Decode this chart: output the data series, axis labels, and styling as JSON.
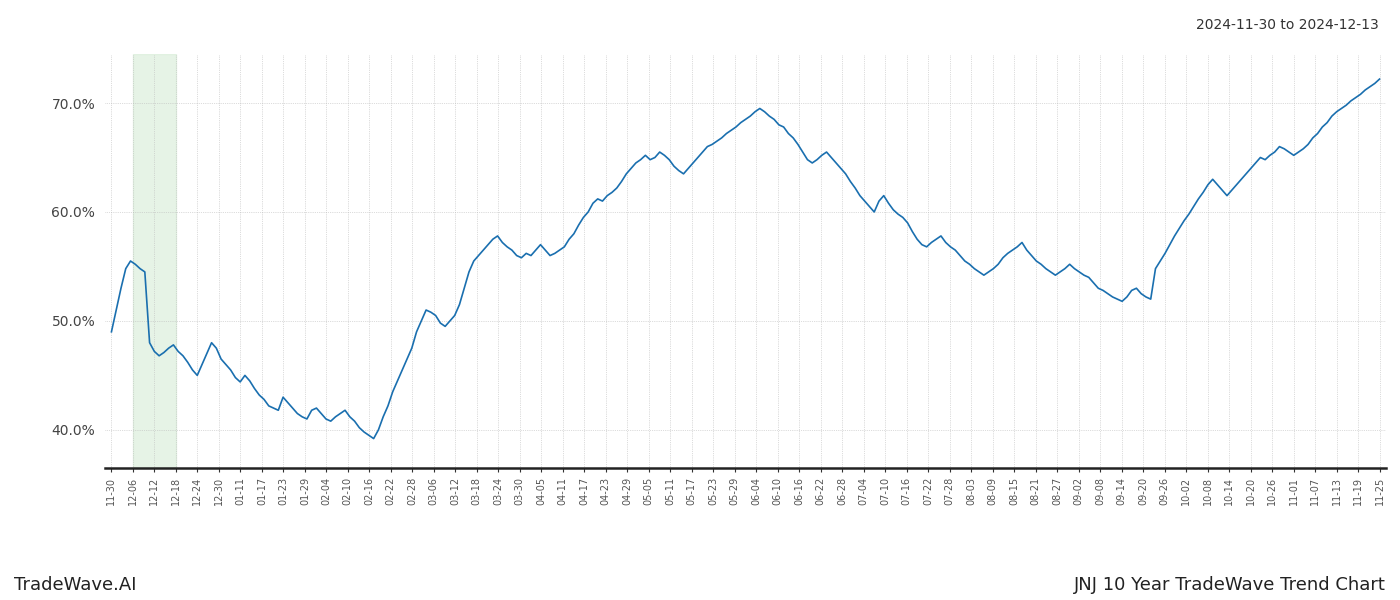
{
  "title_date_range": "2024-11-30 to 2024-12-13",
  "footer_left": "TradeWave.AI",
  "footer_right": "JNJ 10 Year TradeWave Trend Chart",
  "line_color": "#1a6faf",
  "line_width": 1.2,
  "bg_color": "#ffffff",
  "grid_color": "#bbbbbb",
  "shade_color": "#d6ecd6",
  "shade_alpha": 0.6,
  "ylim": [
    0.365,
    0.745
  ],
  "yticks": [
    0.4,
    0.5,
    0.6,
    0.7
  ],
  "ytick_labels": [
    "40.0%",
    "50.0%",
    "60.0%",
    "70.0%"
  ],
  "shade_x_start_label": "12-06",
  "shade_x_end_label": "12-18",
  "x_labels": [
    "11-30",
    "12-06",
    "12-12",
    "12-18",
    "12-24",
    "12-30",
    "01-11",
    "01-17",
    "01-23",
    "01-29",
    "02-04",
    "02-10",
    "02-16",
    "02-22",
    "02-28",
    "03-06",
    "03-12",
    "03-18",
    "03-24",
    "03-30",
    "04-05",
    "04-11",
    "04-17",
    "04-23",
    "04-29",
    "05-05",
    "05-11",
    "05-17",
    "05-23",
    "05-29",
    "06-04",
    "06-10",
    "06-16",
    "06-22",
    "06-28",
    "07-04",
    "07-10",
    "07-16",
    "07-22",
    "07-28",
    "08-03",
    "08-09",
    "08-15",
    "08-21",
    "08-27",
    "09-02",
    "09-08",
    "09-14",
    "09-20",
    "09-26",
    "10-02",
    "10-08",
    "10-14",
    "10-20",
    "10-26",
    "11-01",
    "11-07",
    "11-13",
    "11-19",
    "11-25"
  ],
  "y_values": [
    0.49,
    0.51,
    0.53,
    0.548,
    0.555,
    0.552,
    0.548,
    0.545,
    0.48,
    0.472,
    0.468,
    0.471,
    0.475,
    0.478,
    0.472,
    0.468,
    0.462,
    0.455,
    0.45,
    0.46,
    0.47,
    0.48,
    0.475,
    0.465,
    0.46,
    0.455,
    0.448,
    0.444,
    0.45,
    0.445,
    0.438,
    0.432,
    0.428,
    0.422,
    0.42,
    0.418,
    0.43,
    0.425,
    0.42,
    0.415,
    0.412,
    0.41,
    0.418,
    0.42,
    0.415,
    0.41,
    0.408,
    0.412,
    0.415,
    0.418,
    0.412,
    0.408,
    0.402,
    0.398,
    0.395,
    0.392,
    0.4,
    0.412,
    0.422,
    0.435,
    0.445,
    0.455,
    0.465,
    0.475,
    0.49,
    0.5,
    0.51,
    0.508,
    0.505,
    0.498,
    0.495,
    0.5,
    0.505,
    0.515,
    0.53,
    0.545,
    0.555,
    0.56,
    0.565,
    0.57,
    0.575,
    0.578,
    0.572,
    0.568,
    0.565,
    0.56,
    0.558,
    0.562,
    0.56,
    0.565,
    0.57,
    0.565,
    0.56,
    0.562,
    0.565,
    0.568,
    0.575,
    0.58,
    0.588,
    0.595,
    0.6,
    0.608,
    0.612,
    0.61,
    0.615,
    0.618,
    0.622,
    0.628,
    0.635,
    0.64,
    0.645,
    0.648,
    0.652,
    0.648,
    0.65,
    0.655,
    0.652,
    0.648,
    0.642,
    0.638,
    0.635,
    0.64,
    0.645,
    0.65,
    0.655,
    0.66,
    0.662,
    0.665,
    0.668,
    0.672,
    0.675,
    0.678,
    0.682,
    0.685,
    0.688,
    0.692,
    0.695,
    0.692,
    0.688,
    0.685,
    0.68,
    0.678,
    0.672,
    0.668,
    0.662,
    0.655,
    0.648,
    0.645,
    0.648,
    0.652,
    0.655,
    0.65,
    0.645,
    0.64,
    0.635,
    0.628,
    0.622,
    0.615,
    0.61,
    0.605,
    0.6,
    0.61,
    0.615,
    0.608,
    0.602,
    0.598,
    0.595,
    0.59,
    0.582,
    0.575,
    0.57,
    0.568,
    0.572,
    0.575,
    0.578,
    0.572,
    0.568,
    0.565,
    0.56,
    0.555,
    0.552,
    0.548,
    0.545,
    0.542,
    0.545,
    0.548,
    0.552,
    0.558,
    0.562,
    0.565,
    0.568,
    0.572,
    0.565,
    0.56,
    0.555,
    0.552,
    0.548,
    0.545,
    0.542,
    0.545,
    0.548,
    0.552,
    0.548,
    0.545,
    0.542,
    0.54,
    0.535,
    0.53,
    0.528,
    0.525,
    0.522,
    0.52,
    0.518,
    0.522,
    0.528,
    0.53,
    0.525,
    0.522,
    0.52,
    0.548,
    0.555,
    0.562,
    0.57,
    0.578,
    0.585,
    0.592,
    0.598,
    0.605,
    0.612,
    0.618,
    0.625,
    0.63,
    0.625,
    0.62,
    0.615,
    0.62,
    0.625,
    0.63,
    0.635,
    0.64,
    0.645,
    0.65,
    0.648,
    0.652,
    0.655,
    0.66,
    0.658,
    0.655,
    0.652,
    0.655,
    0.658,
    0.662,
    0.668,
    0.672,
    0.678,
    0.682,
    0.688,
    0.692,
    0.695,
    0.698,
    0.702,
    0.705,
    0.708,
    0.712,
    0.715,
    0.718,
    0.722
  ]
}
